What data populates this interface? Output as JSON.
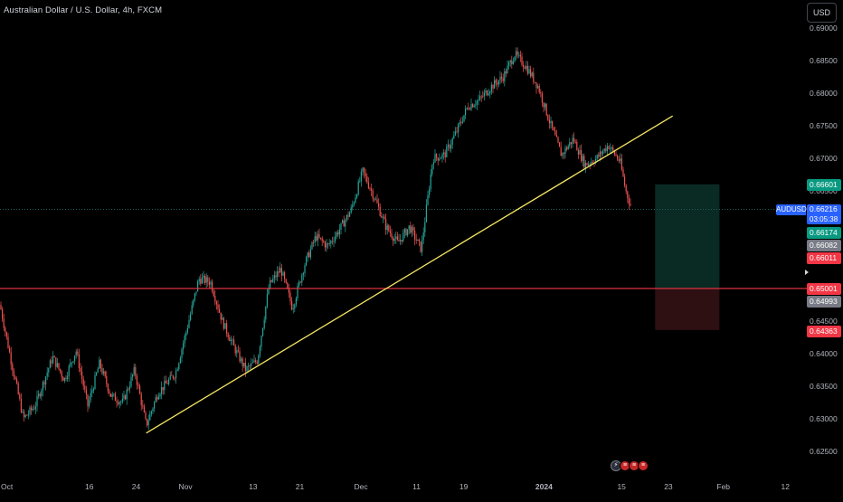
{
  "header": {
    "title": "Australian Dollar / U.S. Dollar, 4h, FXCM",
    "currency_button": "USD"
  },
  "price_axis": {
    "ticks": [
      "0.69000",
      "0.68500",
      "0.68000",
      "0.67500",
      "0.67000",
      "0.66500",
      "0.64500",
      "0.64000",
      "0.63500",
      "0.63000",
      "0.62500"
    ]
  },
  "price_tags": {
    "symbol": "AUDUSD",
    "current_price": "0.66216",
    "countdown": "03:05:38",
    "take_profit": "0.66601",
    "tag_2": "0.66174",
    "tag_3": "0.66082",
    "tag_4": "0.66011",
    "red_line_price": "0.65001",
    "tag_6": "0.64993",
    "stop_loss": "0.64363"
  },
  "time_axis": {
    "labels": [
      "Oct",
      "16",
      "24",
      "Nov",
      "13",
      "21",
      "Dec",
      "11",
      "19",
      "2024",
      "15",
      "23",
      "Feb",
      "12"
    ]
  },
  "colors": {
    "up": "#26a69a",
    "down": "#ef5350",
    "trendline": "#f5e663",
    "horizontal_line": "#f23645",
    "symbol_tag": "#2962ff",
    "current_price_tag": "#2962ff",
    "profit_zone": "#0a2a24",
    "loss_zone": "#2e0f12"
  },
  "chart_data": {
    "type": "candlestick",
    "title": "Australian Dollar / U.S. Dollar, 4h, FXCM",
    "ylim": [
      0.6225,
      0.6925
    ],
    "xlim": [
      "2023-10-01",
      "2024-02-16"
    ],
    "close_path": [
      [
        "2023-10-01",
        0.6475
      ],
      [
        "2023-10-03",
        0.6385
      ],
      [
        "2023-10-05",
        0.63
      ],
      [
        "2023-10-07",
        0.632
      ],
      [
        "2023-10-10",
        0.6395
      ],
      [
        "2023-10-12",
        0.636
      ],
      [
        "2023-10-14",
        0.6405
      ],
      [
        "2023-10-16",
        0.632
      ],
      [
        "2023-10-18",
        0.6385
      ],
      [
        "2023-10-20",
        0.6335
      ],
      [
        "2023-10-22",
        0.6325
      ],
      [
        "2023-10-24",
        0.6375
      ],
      [
        "2023-10-26",
        0.629
      ],
      [
        "2023-10-28",
        0.634
      ],
      [
        "2023-10-31",
        0.637
      ],
      [
        "2023-11-02",
        0.644
      ],
      [
        "2023-11-04",
        0.6515
      ],
      [
        "2023-11-06",
        0.651
      ],
      [
        "2023-11-08",
        0.645
      ],
      [
        "2023-11-10",
        0.641
      ],
      [
        "2023-11-12",
        0.6375
      ],
      [
        "2023-11-14",
        0.639
      ],
      [
        "2023-11-16",
        0.6505
      ],
      [
        "2023-11-18",
        0.653
      ],
      [
        "2023-11-20",
        0.647
      ],
      [
        "2023-11-22",
        0.6535
      ],
      [
        "2023-11-24",
        0.658
      ],
      [
        "2023-11-26",
        0.6565
      ],
      [
        "2023-11-28",
        0.659
      ],
      [
        "2023-11-30",
        0.662
      ],
      [
        "2023-12-02",
        0.668
      ],
      [
        "2023-12-04",
        0.664
      ],
      [
        "2023-12-06",
        0.6595
      ],
      [
        "2023-12-08",
        0.657
      ],
      [
        "2023-12-10",
        0.6595
      ],
      [
        "2023-12-12",
        0.656
      ],
      [
        "2023-12-14",
        0.67
      ],
      [
        "2023-12-16",
        0.6705
      ],
      [
        "2023-12-18",
        0.674
      ],
      [
        "2023-12-20",
        0.678
      ],
      [
        "2023-12-22",
        0.679
      ],
      [
        "2023-12-24",
        0.681
      ],
      [
        "2023-12-26",
        0.6825
      ],
      [
        "2023-12-28",
        0.686
      ],
      [
        "2023-12-30",
        0.684
      ],
      [
        "2024-01-01",
        0.681
      ],
      [
        "2024-01-03",
        0.6755
      ],
      [
        "2024-01-05",
        0.6705
      ],
      [
        "2024-01-07",
        0.673
      ],
      [
        "2024-01-09",
        0.669
      ],
      [
        "2024-01-11",
        0.67
      ],
      [
        "2024-01-13",
        0.672
      ],
      [
        "2024-01-15",
        0.6695
      ],
      [
        "2024-01-16",
        0.665
      ],
      [
        "2024-01-17",
        0.6622
      ]
    ]
  },
  "drawings": {
    "trendline": {
      "from": [
        "2023-10-26",
        0.6278
      ],
      "to": [
        "2024-01-24",
        0.6765
      ]
    },
    "horizontal_line_price": 0.65001,
    "position": {
      "entry": 0.65001,
      "take_profit": 0.66601,
      "stop_loss": 0.64363,
      "from": "2024-01-21",
      "to": "2024-02-01"
    }
  },
  "events": [
    "flash-icon",
    "flag-icon-1",
    "flag-icon-2",
    "flag-icon-3"
  ]
}
